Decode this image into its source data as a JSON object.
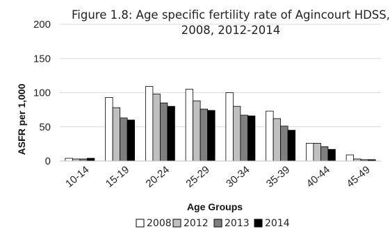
{
  "chart_data": {
    "type": "bar",
    "title": "Figure 1.8: Age specific fertility rate of Agincourt HDSS,",
    "subtitle": "2008, 2012-2014",
    "xlabel": "Age Groups",
    "ylabel": "ASFR per 1,000",
    "ylim": [
      0,
      200
    ],
    "yticks": [
      0,
      50,
      100,
      150,
      200
    ],
    "grid": "horizontal",
    "legend_position": "bottom",
    "categories": [
      "10-14",
      "15-19",
      "20-24",
      "25-29",
      "30-34",
      "35-39",
      "40-44",
      "45-49"
    ],
    "series": [
      {
        "name": "2008",
        "color": "#ffffff",
        "values": [
          4,
          93,
          109,
          105,
          100,
          73,
          26,
          9
        ]
      },
      {
        "name": "2012",
        "color": "#c0c0c0",
        "values": [
          3,
          78,
          98,
          88,
          80,
          62,
          26,
          3
        ]
      },
      {
        "name": "2013",
        "color": "#7f7f7f",
        "values": [
          3,
          63,
          85,
          76,
          67,
          51,
          21,
          2
        ]
      },
      {
        "name": "2014",
        "color": "#000000",
        "values": [
          4,
          60,
          80,
          74,
          66,
          45,
          17,
          2
        ]
      }
    ]
  }
}
